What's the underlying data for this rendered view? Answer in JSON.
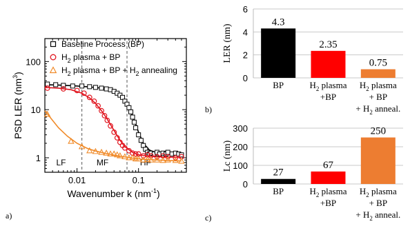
{
  "chart_data": [
    {
      "type": "scatter",
      "panel_label": "a)",
      "xlabel": "Wavenumber k (nm",
      "xlabel_sup": "-1",
      "xlabel_tail": ")",
      "ylabel": "PSD LER (nm",
      "ylabel_sup": "3",
      "ylabel_tail": ")",
      "x_scale": "log",
      "y_scale": "log",
      "xlim": [
        0.003,
        0.6
      ],
      "ylim": [
        0.5,
        300
      ],
      "x_ticks": [
        {
          "value": 0.01,
          "label": "0.01"
        },
        {
          "value": 0.1,
          "label": "0.1"
        }
      ],
      "y_ticks": [
        {
          "value": 1,
          "label": "1"
        },
        {
          "value": 10,
          "label": "10"
        },
        {
          "value": 100,
          "label": "100"
        }
      ],
      "regions": [
        {
          "label": "LF",
          "x": 0.0055
        },
        {
          "label": "MF",
          "x": 0.026
        },
        {
          "label": "HF",
          "x": 0.13
        }
      ],
      "region_boundaries": [
        0.012,
        0.065
      ],
      "legend_position": "top-right",
      "series": [
        {
          "name": "Baseline Process (BP)",
          "color": "#000000",
          "marker": "square",
          "x": [
            0.0033,
            0.0045,
            0.006,
            0.0085,
            0.012,
            0.016,
            0.02,
            0.025,
            0.03,
            0.035,
            0.04,
            0.045,
            0.05,
            0.055,
            0.06,
            0.065,
            0.07,
            0.075,
            0.08,
            0.085,
            0.09,
            0.1,
            0.11,
            0.12,
            0.13,
            0.14,
            0.15,
            0.16,
            0.18,
            0.2,
            0.22,
            0.25,
            0.28,
            0.3,
            0.35,
            0.4,
            0.45,
            0.5
          ],
          "y": [
            34,
            33,
            32,
            31,
            31,
            30,
            29,
            28,
            27,
            26,
            24,
            22,
            20,
            18,
            15,
            13,
            11,
            9,
            7,
            5.5,
            4.2,
            3,
            2.3,
            1.8,
            1.5,
            1.3,
            1.2,
            1.25,
            1.2,
            1.3,
            1.2,
            1.25,
            1.2,
            1.3,
            1.2,
            1.25,
            1.2,
            1.15
          ],
          "fit_x": [
            0.003,
            0.005,
            0.01,
            0.02,
            0.03,
            0.04,
            0.05,
            0.06,
            0.07,
            0.08,
            0.09,
            0.1,
            0.12,
            0.15,
            0.2,
            0.3,
            0.5
          ],
          "fit_y": [
            33,
            32.5,
            31,
            29,
            27,
            24,
            20,
            15.5,
            11,
            7.5,
            5,
            3.4,
            2,
            1.45,
            1.25,
            1.2,
            1.18
          ]
        },
        {
          "name": "H2 plasma + BP",
          "name_html": [
            "H",
            "2",
            " plasma + BP"
          ],
          "color": "#e0141e",
          "marker": "circle",
          "x": [
            0.0033,
            0.006,
            0.01,
            0.013,
            0.016,
            0.019,
            0.022,
            0.025,
            0.028,
            0.031,
            0.035,
            0.04,
            0.045,
            0.05,
            0.055,
            0.06,
            0.07,
            0.08,
            0.09,
            0.1,
            0.12,
            0.14,
            0.16,
            0.2,
            0.25,
            0.3,
            0.4,
            0.5
          ],
          "y": [
            28,
            27,
            25,
            22,
            18,
            15,
            12,
            9.5,
            7.5,
            6,
            4.6,
            3.4,
            2.6,
            2.1,
            1.8,
            1.6,
            1.4,
            1.25,
            1.2,
            1.2,
            1.1,
            1.15,
            1.1,
            1.05,
            1.1,
            1.05,
            1.0,
            1.05
          ],
          "fit_x": [
            0.003,
            0.005,
            0.008,
            0.012,
            0.016,
            0.02,
            0.025,
            0.03,
            0.04,
            0.05,
            0.06,
            0.08,
            0.1,
            0.15,
            0.2,
            0.3,
            0.5
          ],
          "fit_y": [
            29,
            28,
            26,
            22,
            17.5,
            13.5,
            9.5,
            6.8,
            3.7,
            2.3,
            1.7,
            1.3,
            1.15,
            1.08,
            1.05,
            1.03,
            1.02
          ]
        },
        {
          "name": "H2 plasma + BP + H2 annealing",
          "name_html": [
            "H",
            "2",
            " plasma + BP + H",
            "2",
            " annealing"
          ],
          "color": "#f08a28",
          "marker": "triangle",
          "x": [
            0.0033,
            0.008,
            0.012,
            0.016,
            0.02,
            0.025,
            0.03,
            0.035,
            0.04,
            0.045,
            0.05,
            0.06,
            0.07,
            0.08,
            0.09,
            0.1,
            0.12,
            0.14,
            0.16,
            0.2,
            0.25,
            0.3,
            0.4,
            0.5
          ],
          "y": [
            8,
            2.2,
            1.7,
            1.4,
            1.35,
            1.3,
            1.25,
            1.2,
            1.2,
            1.15,
            1.1,
            1.05,
            1.0,
            1.0,
            0.95,
            0.95,
            0.9,
            0.92,
            0.9,
            0.9,
            0.88,
            0.9,
            0.88,
            0.85
          ],
          "fit_x": [
            0.003,
            0.004,
            0.005,
            0.007,
            0.01,
            0.015,
            0.02,
            0.03,
            0.05,
            0.08,
            0.12,
            0.2,
            0.3,
            0.5
          ],
          "fit_y": [
            9.5,
            6,
            4.2,
            2.8,
            2.0,
            1.55,
            1.38,
            1.22,
            1.08,
            0.98,
            0.93,
            0.9,
            0.88,
            0.86
          ]
        }
      ]
    },
    {
      "type": "bar",
      "panel_label": "b)",
      "ylabel": "LER (nm)",
      "ylim": [
        0,
        6
      ],
      "y_ticks": [
        0,
        2,
        4,
        6
      ],
      "grid": true,
      "categories": [
        {
          "lines": [
            [
              "BP"
            ]
          ]
        },
        {
          "lines": [
            [
              "H",
              "2",
              " plasma"
            ],
            [
              "+BP"
            ]
          ]
        },
        {
          "lines": [
            [
              "H",
              "2",
              " plasma"
            ],
            [
              "+ BP"
            ],
            [
              "+ H",
              "2",
              " anneal."
            ]
          ]
        }
      ],
      "values": [
        4.3,
        2.35,
        0.75
      ],
      "value_labels": [
        "4.3",
        "2.35",
        "0.75"
      ],
      "colors": [
        "#000000",
        "#ff0000",
        "#ed7d31"
      ]
    },
    {
      "type": "bar",
      "panel_label": "c)",
      "ylabel": "Lc (nm)",
      "ylim": [
        0,
        300
      ],
      "y_ticks": [
        0,
        100,
        200,
        300
      ],
      "grid": true,
      "categories": [
        {
          "lines": [
            [
              "BP"
            ]
          ]
        },
        {
          "lines": [
            [
              "H",
              "2",
              " plasma"
            ],
            [
              "+BP"
            ]
          ]
        },
        {
          "lines": [
            [
              "H",
              "2",
              " plasma"
            ],
            [
              "+ BP"
            ],
            [
              "+ H",
              "2",
              " anneal."
            ]
          ]
        }
      ],
      "values": [
        27,
        67,
        250
      ],
      "value_labels": [
        "27",
        "67",
        "250"
      ],
      "colors": [
        "#000000",
        "#ff0000",
        "#ed7d31"
      ]
    }
  ]
}
